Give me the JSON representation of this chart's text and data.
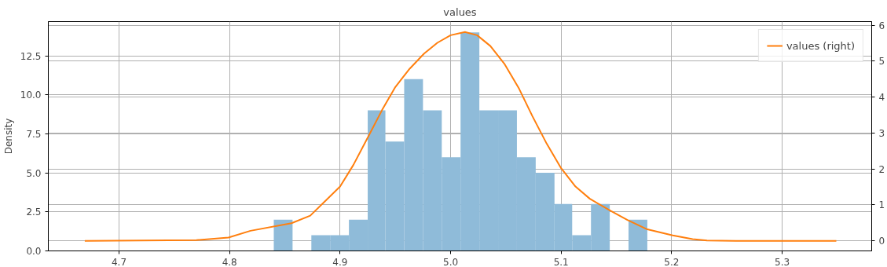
{
  "chart_data": {
    "type": "histogram",
    "title": "values",
    "ylabel": "Density",
    "xlim": [
      4.636,
      5.381
    ],
    "xticks": [
      4.7,
      4.8,
      4.9,
      {
        "value": 5,
        "label": "5.0"
      },
      5.1,
      5.2,
      5.3
    ],
    "ylim": [
      0,
      14.69
    ],
    "yticks": [
      {
        "value": 0,
        "label": "0.0"
      },
      {
        "value": 2.5,
        "label": "2.5"
      },
      {
        "value": 5,
        "label": "5.0"
      },
      {
        "value": 7.5,
        "label": "7.5"
      },
      {
        "value": 10,
        "label": "10.0"
      },
      {
        "value": 12.5,
        "label": "12.5"
      }
    ],
    "y2lim": [
      -0.28,
      6.1
    ],
    "y2ticks": [
      0,
      1,
      2,
      3,
      4,
      5,
      6
    ],
    "grid": true,
    "legend": "top right",
    "series": [
      {
        "color": "#8fbbd9",
        "bins": [
          4.84,
          4.857,
          4.874,
          4.891,
          4.908,
          4.925,
          4.941,
          4.958,
          4.975,
          4.992,
          5.009,
          5.026,
          5.043,
          5.06,
          5.077,
          5.094,
          5.11,
          5.127,
          5.144,
          5.161,
          5.178
        ],
        "values": [
          2,
          0,
          1,
          1,
          2,
          9,
          7,
          11,
          9,
          6,
          14,
          9,
          9,
          6,
          5,
          3,
          1,
          3,
          0,
          2
        ]
      },
      {
        "type": "line",
        "axis": "y2",
        "name": "values (right)",
        "color": "#ff7f0e",
        "x": [
          4.669,
          4.77,
          4.799,
          4.819,
          4.856,
          4.873,
          4.886,
          4.9,
          4.912,
          4.925,
          4.938,
          4.95,
          4.963,
          4.976,
          4.988,
          5.0,
          5.013,
          5.024,
          5.036,
          5.049,
          5.062,
          5.074,
          5.087,
          5.1,
          5.113,
          5.126,
          5.145,
          5.16,
          5.178,
          5.201,
          5.219,
          5.232,
          5.258,
          5.349
        ],
        "values": [
          0,
          0.02,
          0.09,
          0.28,
          0.49,
          0.7,
          1.09,
          1.51,
          2.11,
          2.87,
          3.64,
          4.28,
          4.79,
          5.21,
          5.51,
          5.72,
          5.81,
          5.72,
          5.42,
          4.91,
          4.23,
          3.47,
          2.7,
          2.02,
          1.51,
          1.17,
          0.83,
          0.58,
          0.32,
          0.15,
          0.05,
          0.01,
          0,
          0
        ]
      }
    ]
  }
}
